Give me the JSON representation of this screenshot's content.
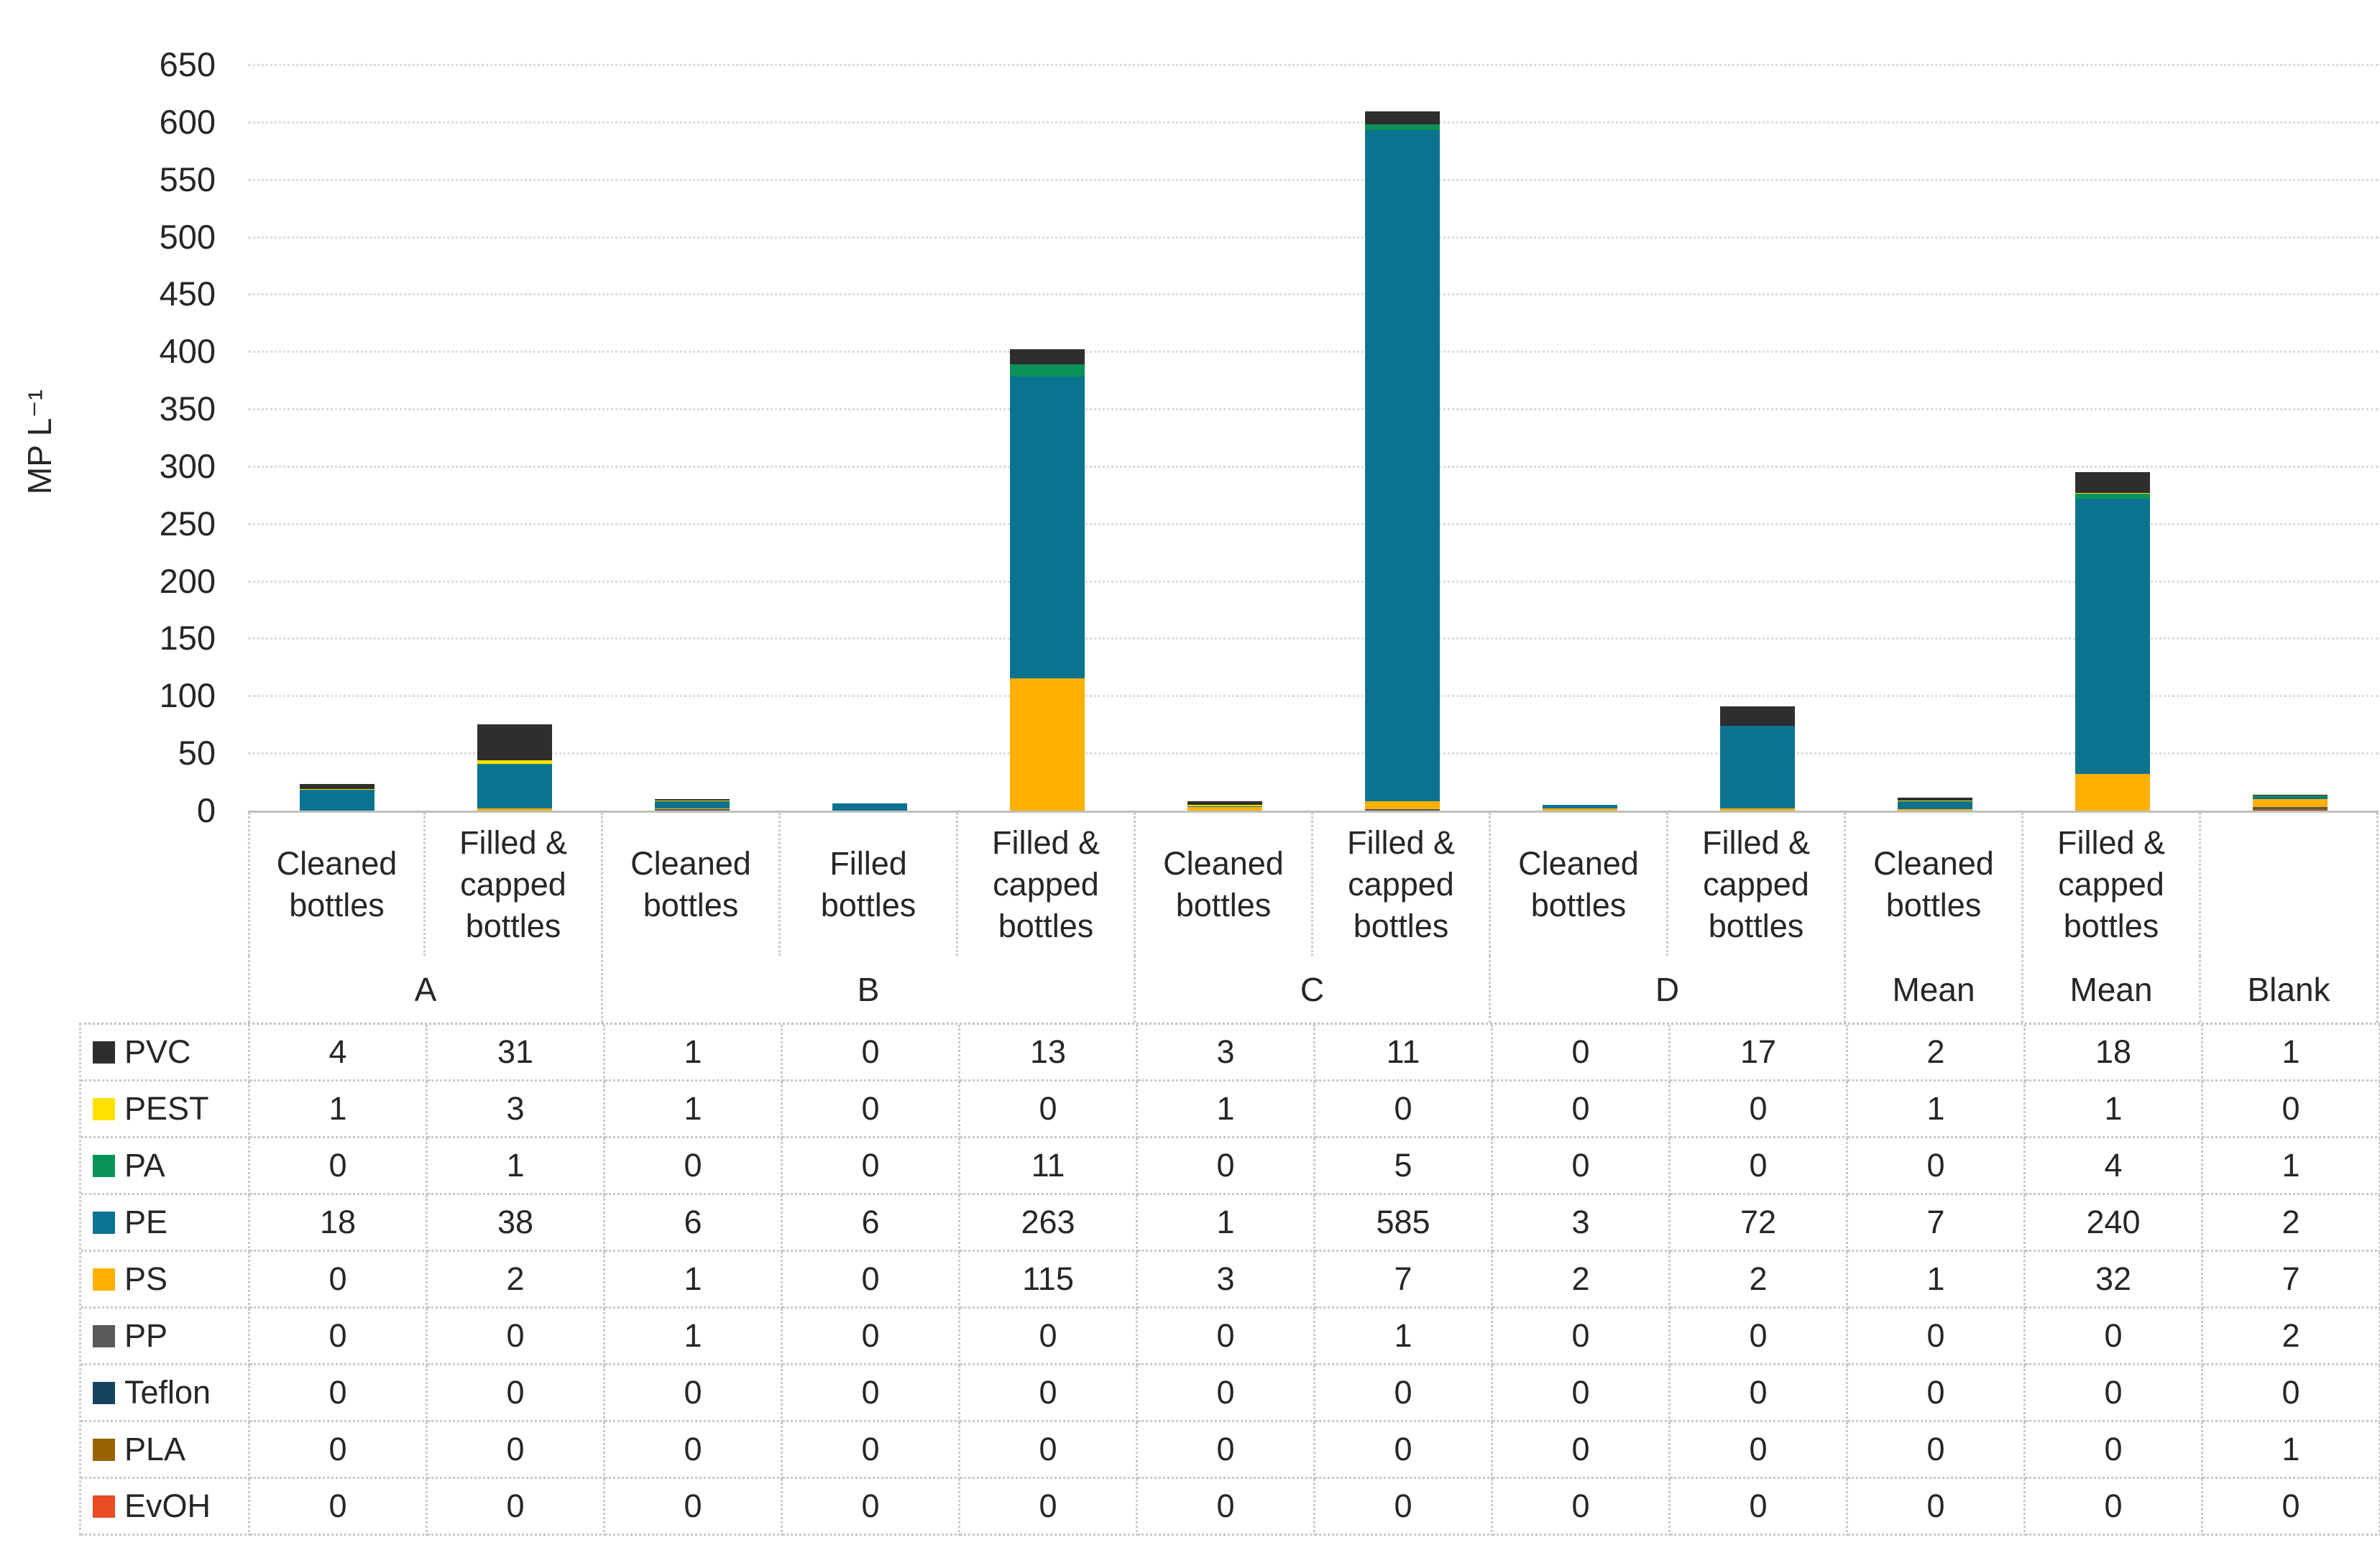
{
  "chart_data": {
    "type": "bar",
    "stacked": true,
    "title": "",
    "ylabel": "MP L⁻¹",
    "ylim": [
      0,
      650
    ],
    "yticks": [
      0,
      50,
      100,
      150,
      200,
      250,
      300,
      350,
      400,
      450,
      500,
      550,
      600,
      650
    ],
    "grid": "horizontal-dotted",
    "legend_position": "table-row-headers",
    "categories": [
      "Cleaned bottles",
      "Filled & capped bottles",
      "Cleaned bottles",
      "Filled bottles",
      "Filled & capped bottles",
      "Cleaned bottles",
      "Filled & capped bottles",
      "Cleaned bottles",
      "Filled & capped bottles",
      "Cleaned bottles",
      "Filled & capped bottles",
      ""
    ],
    "groups": [
      {
        "label": "A",
        "span": 2
      },
      {
        "label": "B",
        "span": 3
      },
      {
        "label": "C",
        "span": 2
      },
      {
        "label": "D",
        "span": 2
      },
      {
        "label": "Mean",
        "span": 1
      },
      {
        "label": "Mean",
        "span": 1
      },
      {
        "label": "Blank",
        "span": 1
      }
    ],
    "series": [
      {
        "name": "PVC",
        "color": "#2e2e2e",
        "textured": true,
        "values": [
          4,
          31,
          1,
          0,
          13,
          3,
          11,
          0,
          17,
          2,
          18,
          1
        ]
      },
      {
        "name": "PEST",
        "color": "#ffe100",
        "textured": false,
        "values": [
          1,
          3,
          1,
          0,
          0,
          1,
          0,
          0,
          0,
          1,
          1,
          0
        ]
      },
      {
        "name": "PA",
        "color": "#0a9357",
        "textured": false,
        "values": [
          0,
          1,
          0,
          0,
          11,
          0,
          5,
          0,
          0,
          0,
          4,
          1
        ]
      },
      {
        "name": "PE",
        "color": "#0b7390",
        "textured": false,
        "values": [
          18,
          38,
          6,
          6,
          263,
          1,
          585,
          3,
          72,
          7,
          240,
          2
        ]
      },
      {
        "name": "PS",
        "color": "#ffb000",
        "textured": false,
        "values": [
          0,
          2,
          1,
          0,
          115,
          3,
          7,
          2,
          2,
          1,
          32,
          7
        ]
      },
      {
        "name": "PP",
        "color": "#595959",
        "textured": true,
        "values": [
          0,
          0,
          1,
          0,
          0,
          0,
          1,
          0,
          0,
          0,
          0,
          2
        ]
      },
      {
        "name": "Teflon",
        "color": "#15425c",
        "textured": false,
        "values": [
          0,
          0,
          0,
          0,
          0,
          0,
          0,
          0,
          0,
          0,
          0,
          0
        ]
      },
      {
        "name": "PLA",
        "color": "#9b6300",
        "textured": false,
        "values": [
          0,
          0,
          0,
          0,
          0,
          0,
          0,
          0,
          0,
          0,
          0,
          1
        ]
      },
      {
        "name": "EvOH",
        "color": "#e84c22",
        "textured": false,
        "values": [
          0,
          0,
          0,
          0,
          0,
          0,
          0,
          0,
          0,
          0,
          0,
          0
        ]
      }
    ],
    "stack_order_bottom_to_top": [
      "EvOH",
      "PLA",
      "Teflon",
      "PP",
      "PS",
      "PE",
      "PA",
      "PEST",
      "PVC"
    ]
  },
  "colors": {
    "text": "#262626",
    "gridline": "#dcdcdc",
    "axis_line": "#bfbfbf",
    "table_border": "#c9c9c9",
    "background": "#ffffff"
  }
}
